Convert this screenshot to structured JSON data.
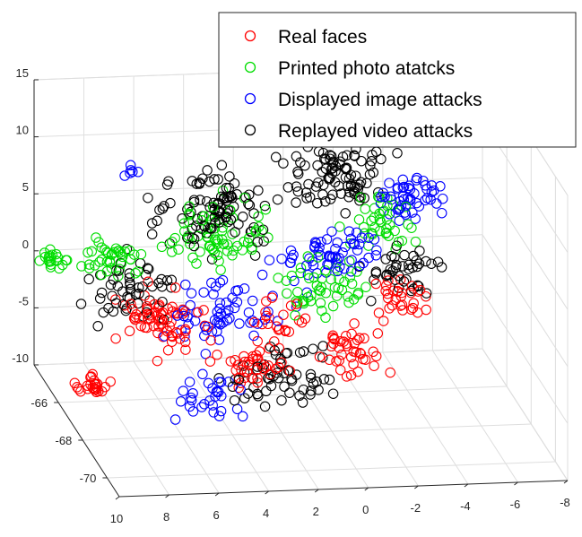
{
  "chart_data": {
    "type": "scatter",
    "dimensions": 3,
    "title": "",
    "xlabel": "",
    "ylabel": "",
    "zlabel": "",
    "xlim": [
      -8,
      10
    ],
    "ylim": [
      -71,
      -64
    ],
    "zlim": [
      -10,
      15
    ],
    "x_ticks": [
      "10",
      "8",
      "6",
      "4",
      "2",
      "0",
      "-2",
      "-4",
      "-6",
      "-8"
    ],
    "y_ticks": [
      "-66",
      "-68",
      "-70"
    ],
    "z_ticks": [
      "15",
      "10",
      "5",
      "0",
      "-5",
      "-10"
    ],
    "grid": true,
    "legend_position": "top-right",
    "marker": "open-circle",
    "series": [
      {
        "name": "Real faces",
        "color": "#ff0000",
        "clusters": [
          {
            "x": 5.5,
            "y": -65.5,
            "z": -4,
            "spread": 1.2,
            "count": 70
          },
          {
            "x": 8.5,
            "y": -65.5,
            "z": -9.5,
            "spread": 0.4,
            "count": 25
          },
          {
            "x": 2.5,
            "y": -66.5,
            "z": -6.5,
            "spread": 1.0,
            "count": 40
          },
          {
            "x": -1.5,
            "y": -66,
            "z": -6.5,
            "spread": 1.0,
            "count": 40
          },
          {
            "x": -4,
            "y": -65,
            "z": -4,
            "spread": 0.9,
            "count": 30
          },
          {
            "x": 1,
            "y": -65.3,
            "z": -4.5,
            "spread": 0.8,
            "count": 20
          }
        ]
      },
      {
        "name": "Printed photo atatcks",
        "color": "#00dd00",
        "clusters": [
          {
            "x": 9.5,
            "y": -64.3,
            "z": -0.5,
            "spread": 0.4,
            "count": 20
          },
          {
            "x": 7,
            "y": -64.6,
            "z": 0,
            "spread": 0.9,
            "count": 40
          },
          {
            "x": 3,
            "y": -64.8,
            "z": 2,
            "spread": 1.4,
            "count": 70
          },
          {
            "x": -1,
            "y": -65.3,
            "z": -2,
            "spread": 1.2,
            "count": 50
          },
          {
            "x": -3.5,
            "y": -64.7,
            "z": 2.5,
            "spread": 1.0,
            "count": 40
          }
        ]
      },
      {
        "name": "Displayed image attacks",
        "color": "#0000ff",
        "clusters": [
          {
            "x": 3,
            "y": -65.5,
            "z": -3,
            "spread": 1.5,
            "count": 60
          },
          {
            "x": -1.5,
            "y": -64.8,
            "z": 0,
            "spread": 1.3,
            "count": 60
          },
          {
            "x": -5,
            "y": -64.2,
            "z": 4,
            "spread": 0.9,
            "count": 50
          },
          {
            "x": 4.5,
            "y": -66.8,
            "z": -9,
            "spread": 1.0,
            "count": 30
          },
          {
            "x": 6,
            "y": -64,
            "z": 6.5,
            "spread": 0.3,
            "count": 6
          }
        ]
      },
      {
        "name": "Replayed video attacks",
        "color": "#000000",
        "clusters": [
          {
            "x": 3,
            "y": -64.4,
            "z": 4,
            "spread": 1.5,
            "count": 100
          },
          {
            "x": -2,
            "y": -64,
            "z": 6,
            "spread": 1.5,
            "count": 90
          },
          {
            "x": 6.5,
            "y": -65,
            "z": -2,
            "spread": 1.2,
            "count": 50
          },
          {
            "x": 1.5,
            "y": -66.3,
            "z": -8,
            "spread": 1.5,
            "count": 60
          },
          {
            "x": -4.5,
            "y": -64.8,
            "z": -1.5,
            "spread": 1.0,
            "count": 40
          }
        ]
      }
    ]
  }
}
